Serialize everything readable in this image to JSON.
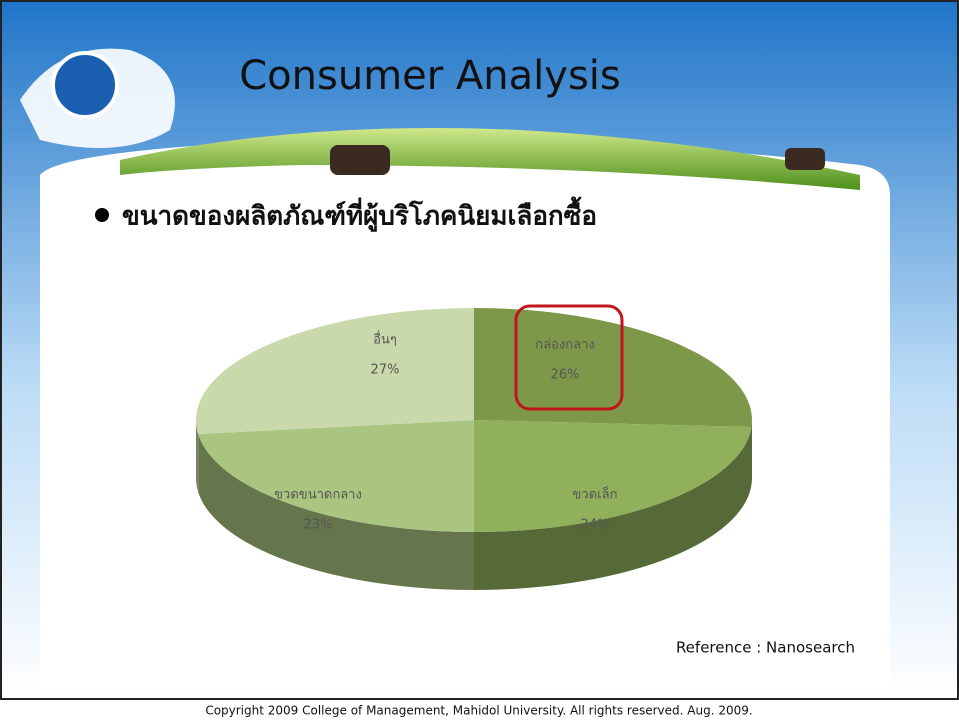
{
  "title": "Consumer Analysis",
  "bullet": "ขนาดของผลิตภัณฑ์ที่ผู้บริโภคนิยมเลือกซื้อ",
  "reference": "Reference : Nanosearch",
  "copyright": "Copyright 2009 College of Management, Mahidol University. All rights reserved. Aug. 2009.",
  "chart_data": {
    "type": "pie",
    "categories": [
      "กล่องกลาง",
      "ขวดเล็ก",
      "ขวดขนาดกลาง",
      "อื่นๆ"
    ],
    "values": [
      26,
      24,
      23,
      27
    ],
    "value_labels": [
      "26%",
      "24%",
      "23%",
      "27%"
    ],
    "colors": [
      "#7d9848",
      "#90b05c",
      "#aac57f",
      "#cad9ab"
    ]
  }
}
